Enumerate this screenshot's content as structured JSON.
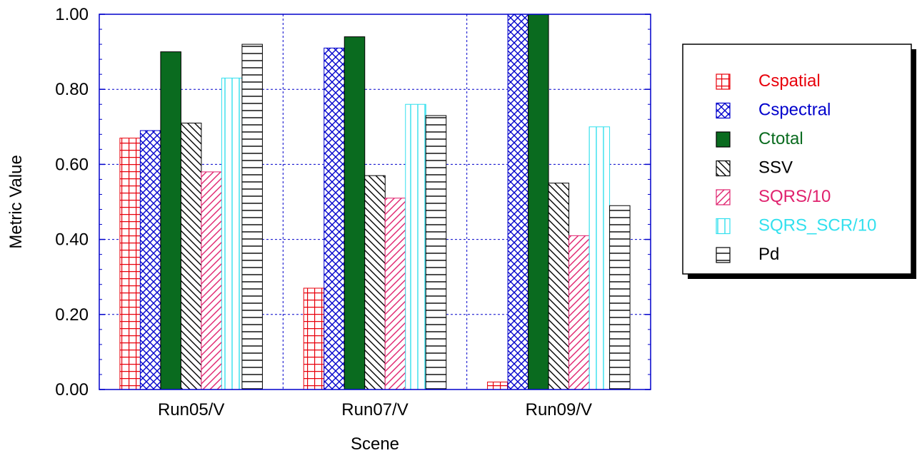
{
  "chart_data": {
    "type": "bar",
    "title": "",
    "xlabel": "Scene",
    "ylabel": "Metric Value",
    "ylim": [
      0,
      1
    ],
    "yticks": [
      "0.00",
      "0.20",
      "0.40",
      "0.60",
      "0.80",
      "1.00"
    ],
    "categories": [
      "Run05/V",
      "Run07/V",
      "Run09/V"
    ],
    "grid": true,
    "legend_position": "right",
    "series": [
      {
        "name": "Cspatial",
        "values": [
          0.67,
          0.27,
          0.02
        ],
        "color": "#e8000b",
        "pattern": "grid"
      },
      {
        "name": "Cspectral",
        "values": [
          0.69,
          0.91,
          1.0
        ],
        "color": "#0000cc",
        "pattern": "crosshatch"
      },
      {
        "name": "Ctotal",
        "values": [
          0.9,
          0.94,
          1.0
        ],
        "color": "#0a6b1f",
        "pattern": "solid"
      },
      {
        "name": "SSV",
        "values": [
          0.71,
          0.57,
          0.55
        ],
        "color": "#000000",
        "pattern": "diagonal-down"
      },
      {
        "name": "SQRS/10",
        "values": [
          0.58,
          0.51,
          0.41
        ],
        "color": "#e0226e",
        "pattern": "diagonal-up"
      },
      {
        "name": "SQRS_SCR/10",
        "values": [
          0.83,
          0.76,
          0.7
        ],
        "color": "#33e0ee",
        "pattern": "vertical"
      },
      {
        "name": "Pd",
        "values": [
          0.92,
          0.73,
          0.49
        ],
        "color": "#000000",
        "pattern": "horizontal"
      }
    ]
  }
}
